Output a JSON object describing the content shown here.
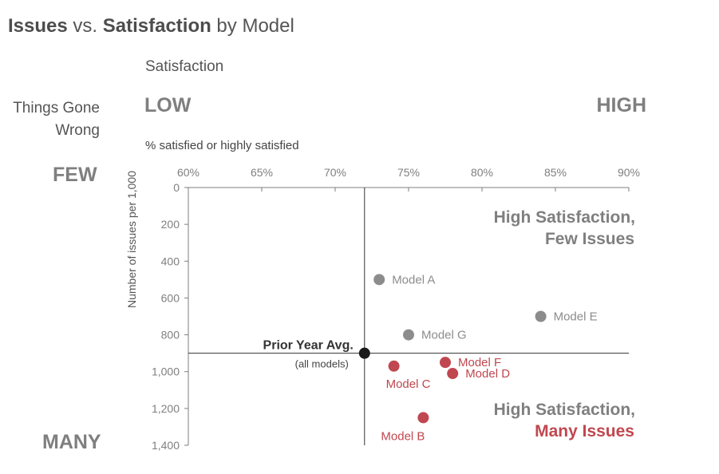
{
  "title": {
    "part1": "Issues",
    "part2": " vs. ",
    "part3": "Satisfaction",
    "part4": " by Model"
  },
  "labels": {
    "satisfaction": "Satisfaction",
    "things_gone_wrong_line1": "Things Gone",
    "things_gone_wrong_line2": "Wrong",
    "low": "LOW",
    "high": "HIGH",
    "few": "FEW",
    "many": "MANY",
    "pct_label": "% satisfied or highly satisfied"
  },
  "colors": {
    "gray_point": "#8c8c8c",
    "red_point": "#c0474f",
    "axis": "#7f7f7f",
    "text_gray": "#7f7f7f",
    "dark": "#1a1a1a"
  },
  "chart_data": {
    "type": "scatter",
    "title": "Issues vs. Satisfaction by Model",
    "xlabel": "% satisfied or highly satisfied",
    "ylabel": "Number of issues per 1,000",
    "xlim": [
      60,
      90
    ],
    "ylim": [
      0,
      1400
    ],
    "y_inverted": true,
    "x_ticks": [
      "60%",
      "65%",
      "70%",
      "75%",
      "80%",
      "85%",
      "90%"
    ],
    "x_tick_values": [
      60,
      65,
      70,
      75,
      80,
      85,
      90
    ],
    "y_ticks": [
      "0",
      "200",
      "400",
      "600",
      "800",
      "1,000",
      "1,200",
      "1,400"
    ],
    "y_tick_values": [
      0,
      200,
      400,
      600,
      800,
      1000,
      1200,
      1400
    ],
    "points": [
      {
        "name": "Model A",
        "x": 73,
        "y": 500,
        "group": "gray",
        "label_pos": "right"
      },
      {
        "name": "Model B",
        "x": 76,
        "y": 1250,
        "group": "red",
        "label_pos": "below-left"
      },
      {
        "name": "Model C",
        "x": 74,
        "y": 970,
        "group": "red",
        "label_pos": "below"
      },
      {
        "name": "Model D",
        "x": 78,
        "y": 1010,
        "group": "red",
        "label_pos": "right"
      },
      {
        "name": "Model E",
        "x": 84,
        "y": 700,
        "group": "gray",
        "label_pos": "right"
      },
      {
        "name": "Model F",
        "x": 77.5,
        "y": 950,
        "group": "red",
        "label_pos": "right"
      },
      {
        "name": "Model G",
        "x": 75,
        "y": 800,
        "group": "gray",
        "label_pos": "right"
      }
    ],
    "reference": {
      "name": "Prior Year Avg.",
      "sub": "(all models)",
      "x": 72,
      "y": 900
    },
    "annotations": {
      "top_line1": "High Satisfaction,",
      "top_line2": "Few Issues",
      "bottom_line1": "High Satisfaction,",
      "bottom_line2": "Many Issues"
    }
  }
}
